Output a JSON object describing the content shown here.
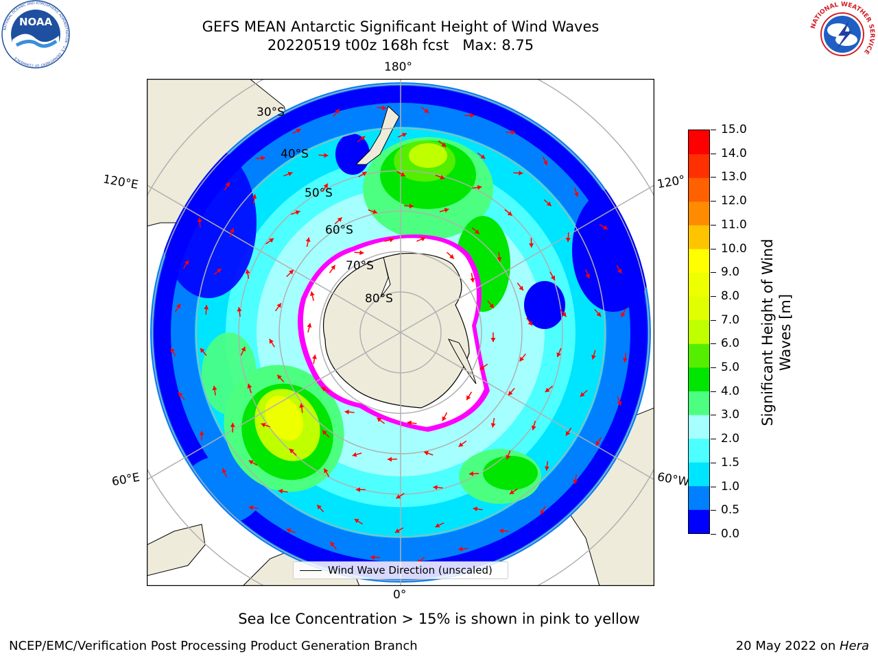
{
  "title": {
    "line1": "GEFS MEAN Antarctic Significant Height of Wind Waves",
    "line2": "20220519 t00z 168h fcst   Max: 8.75"
  },
  "logos": {
    "noaa": {
      "text": "NOAA",
      "ring_text": "NATIONAL OCEANIC AND ATMOSPHERIC ADMINISTRATION · U.S. DEPARTMENT OF COMMERCE",
      "color": "#1f4f9f"
    },
    "nws": {
      "ring_text": "NATIONAL WEATHER SERVICE",
      "color": "#d21f26"
    }
  },
  "map": {
    "longitude_labels": [
      "180°",
      "120°E",
      "120°",
      "60°E",
      "60°W",
      "0°"
    ],
    "latitude_labels": [
      "30°S",
      "40°S",
      "50°S",
      "60°S",
      "70°S",
      "80°S"
    ],
    "land_color": "#efebdb",
    "arrow_color": "#ff0000"
  },
  "legend": {
    "label": "Wind Wave Direction (unscaled)"
  },
  "colorbar": {
    "title_line1": "Significant Height of Wind",
    "title_line2": "Waves [m]",
    "ticks": [
      "0.0",
      "0.5",
      "1.0",
      "1.5",
      "2.0",
      "3.0",
      "4.0",
      "5.0",
      "6.0",
      "7.0",
      "8.0",
      "9.0",
      "10.0",
      "11.0",
      "12.0",
      "13.0",
      "14.0",
      "15.0"
    ],
    "colors": [
      "#0000ff",
      "#0080ff",
      "#00e5ff",
      "#4dffff",
      "#a5ffff",
      "#4dff80",
      "#00e600",
      "#55ee00",
      "#bfff00",
      "#e0ff00",
      "#eeff00",
      "#ffff00",
      "#ffc400",
      "#ff8c00",
      "#ff6000",
      "#ff3000",
      "#ff0000"
    ]
  },
  "subtitle": "Sea Ice Concentration > 15% is shown in pink to yellow",
  "footer": {
    "left": "NCEP/EMC/Verification Post Processing Product Generation Branch",
    "right_prefix": "20 May 2022 on ",
    "right_host": "Hera"
  }
}
